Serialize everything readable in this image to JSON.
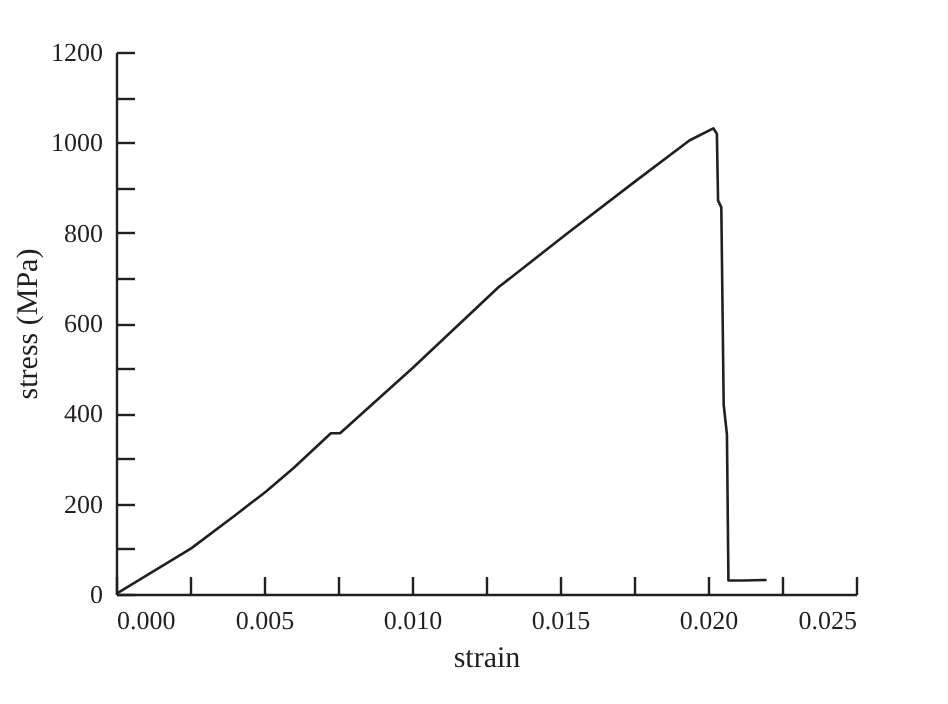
{
  "chart_data": {
    "type": "line",
    "xlabel": "strain",
    "ylabel": "stress (MPa)",
    "x": [
      0,
      0.00254,
      0.00404,
      0.00507,
      0.006,
      0.00726,
      0.00757,
      0.01003,
      0.01292,
      0.01522,
      0.01753,
      0.01937,
      0.02018,
      0.0203,
      0.02034,
      0.02045,
      0.02053,
      0.02064,
      0.02069,
      0.02122,
      0.02198
    ],
    "series": [
      {
        "color": "#231f20",
        "values": [
          0,
          101,
          175,
          227,
          279,
          356,
          356,
          501,
          679,
          797,
          913,
          1004,
          1031,
          1019,
          871,
          856,
          419,
          353,
          30,
          30,
          31
        ]
      }
    ],
    "xlim": [
      0,
      0.025
    ],
    "ylim": [
      0,
      1200
    ],
    "xticks": [
      {
        "value": 0,
        "label": "0.000"
      },
      {
        "value": 0.0025,
        "label": null
      },
      {
        "value": 0.005,
        "label": "0.005"
      },
      {
        "value": 0.0075,
        "label": null
      },
      {
        "value": 0.01,
        "label": "0.010"
      },
      {
        "value": 0.0125,
        "label": null
      },
      {
        "value": 0.015,
        "label": "0.015"
      },
      {
        "value": 0.0175,
        "label": null
      },
      {
        "value": 0.02,
        "label": "0.020"
      },
      {
        "value": 0.0225,
        "label": null
      },
      {
        "value": 0.025,
        "label": "0.025"
      }
    ],
    "yticks": [
      0,
      {
        "value": 100,
        "label": null
      },
      200,
      {
        "value": 300,
        "label": null
      },
      400,
      {
        "value": 500,
        "label": null
      },
      600,
      {
        "value": 700,
        "label": null
      },
      800,
      {
        "value": 900,
        "label": null
      },
      1000,
      {
        "value": 1100,
        "label": null
      },
      1200
    ],
    "grid": false,
    "marker": "none",
    "line_style": "solid"
  }
}
